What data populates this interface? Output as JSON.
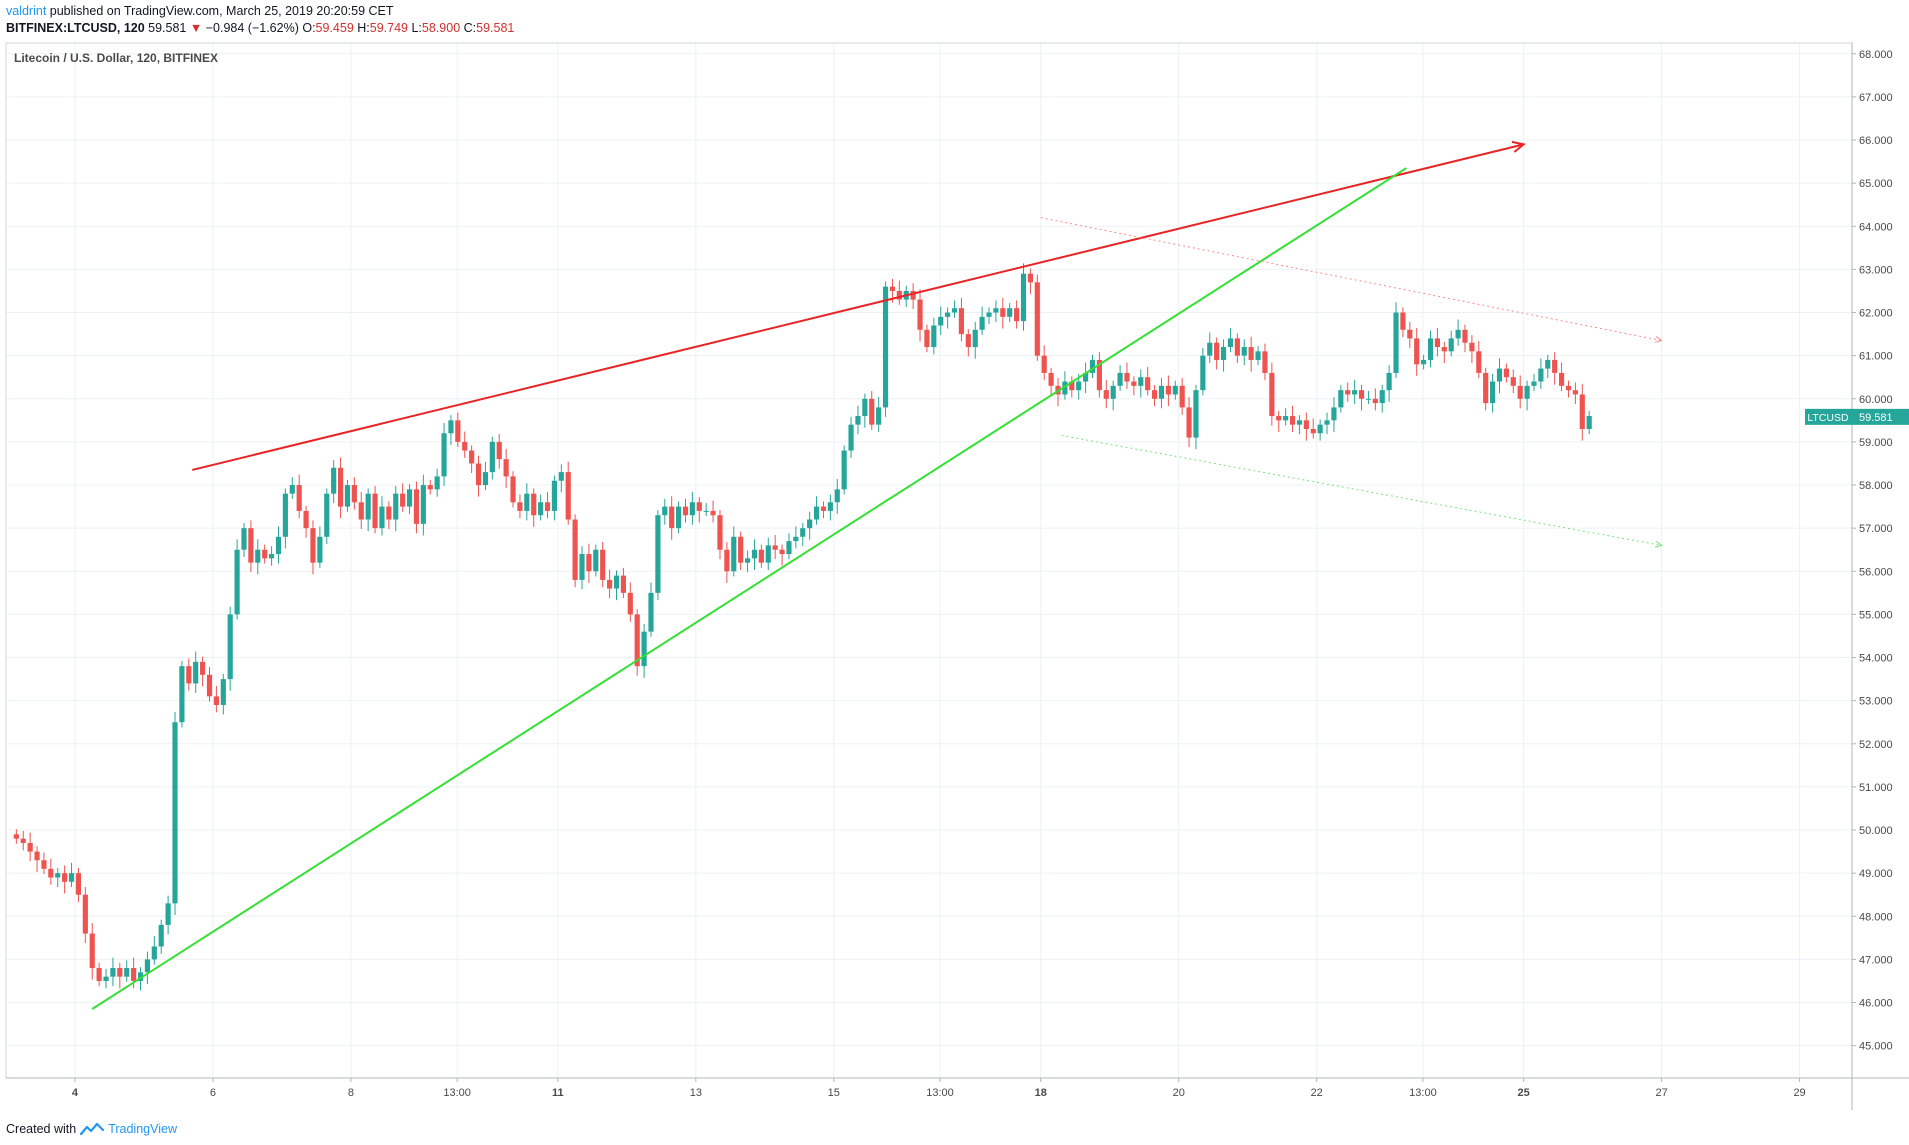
{
  "header": {
    "author": "valdrint",
    "published": " published on TradingView.com, March 25, 2019 20:20:59 CET",
    "symbol": "BITFINEX:LTCUSD, 120",
    "price": "59.581",
    "change_arrow": "▼",
    "change": "−0.984 (−1.62%)",
    "o_label": "O:",
    "o": "59.459",
    "h_label": "H:",
    "h": "59.749",
    "l_label": "L:",
    "l": "58.900",
    "c_label": "C:",
    "c": "59.581"
  },
  "footer": {
    "created_with": "Created with",
    "brand": "TradingView"
  },
  "colors": {
    "up": "#26a69a",
    "down": "#ef5350",
    "red_line": "#e82424",
    "green_line": "#33e033",
    "grid": "#edf1f5",
    "axis_text": "#4a4a4a",
    "price_tag": "#26a69a"
  },
  "chart_data": {
    "type": "candlestick",
    "title": "Litecoin / U.S. Dollar, 120, BITFINEX",
    "ylim": [
      44.25,
      68.25
    ],
    "y_ticks": [
      "68.000",
      "67.000",
      "66.000",
      "65.000",
      "64.000",
      "63.000",
      "62.000",
      "61.000",
      "60.000",
      "59.000",
      "58.000",
      "57.000",
      "56.000",
      "55.000",
      "54.000",
      "53.000",
      "52.000",
      "51.000",
      "50.000",
      "49.000",
      "48.000",
      "47.000",
      "46.000",
      "45.000"
    ],
    "x_ticks": [
      {
        "label": "4",
        "bold": true,
        "day": 4
      },
      {
        "label": "6",
        "bold": false,
        "day": 6
      },
      {
        "label": "8",
        "bold": false,
        "day": 8
      },
      {
        "label": "13:00",
        "bold": false,
        "day": 9.54
      },
      {
        "label": "11",
        "bold": true,
        "day": 11
      },
      {
        "label": "13",
        "bold": false,
        "day": 13
      },
      {
        "label": "15",
        "bold": false,
        "day": 15
      },
      {
        "label": "13:00",
        "bold": false,
        "day": 16.54
      },
      {
        "label": "18",
        "bold": true,
        "day": 18
      },
      {
        "label": "20",
        "bold": false,
        "day": 20
      },
      {
        "label": "22",
        "bold": false,
        "day": 22
      },
      {
        "label": "13:00",
        "bold": false,
        "day": 23.54
      },
      {
        "label": "25",
        "bold": true,
        "day": 25
      },
      {
        "label": "27",
        "bold": false,
        "day": 27
      },
      {
        "label": "29",
        "bold": false,
        "day": 29
      }
    ],
    "last_price_label": "LTCUSD",
    "last_price": "59.581",
    "last_price_value": 59.581,
    "closes": [
      [
        3.15,
        49.8
      ],
      [
        3.25,
        49.7
      ],
      [
        3.35,
        49.5
      ],
      [
        3.45,
        49.3
      ],
      [
        3.55,
        49.1
      ],
      [
        3.65,
        48.9
      ],
      [
        3.75,
        49.0
      ],
      [
        3.85,
        48.8
      ],
      [
        3.95,
        49.0
      ],
      [
        4.05,
        48.5
      ],
      [
        4.15,
        47.6
      ],
      [
        4.25,
        46.8
      ],
      [
        4.35,
        46.5
      ],
      [
        4.45,
        46.6
      ],
      [
        4.55,
        46.8
      ],
      [
        4.65,
        46.6
      ],
      [
        4.75,
        46.8
      ],
      [
        4.85,
        46.5
      ],
      [
        4.95,
        46.7
      ],
      [
        5.05,
        47.0
      ],
      [
        5.15,
        47.3
      ],
      [
        5.25,
        47.8
      ],
      [
        5.35,
        48.3
      ],
      [
        5.45,
        52.5
      ],
      [
        5.55,
        53.8
      ],
      [
        5.65,
        53.4
      ],
      [
        5.75,
        53.9
      ],
      [
        5.85,
        53.6
      ],
      [
        5.95,
        53.1
      ],
      [
        6.05,
        52.9
      ],
      [
        6.15,
        53.5
      ],
      [
        6.25,
        55.0
      ],
      [
        6.35,
        56.5
      ],
      [
        6.45,
        57.0
      ],
      [
        6.55,
        56.2
      ],
      [
        6.65,
        56.5
      ],
      [
        6.75,
        56.3
      ],
      [
        6.85,
        56.4
      ],
      [
        6.95,
        56.8
      ],
      [
        7.05,
        57.8
      ],
      [
        7.15,
        58.0
      ],
      [
        7.25,
        57.4
      ],
      [
        7.35,
        57.0
      ],
      [
        7.45,
        56.2
      ],
      [
        7.55,
        56.8
      ],
      [
        7.65,
        57.8
      ],
      [
        7.75,
        58.4
      ],
      [
        7.85,
        57.5
      ],
      [
        7.95,
        58.0
      ],
      [
        8.05,
        57.6
      ],
      [
        8.15,
        57.2
      ],
      [
        8.25,
        57.8
      ],
      [
        8.35,
        57.0
      ],
      [
        8.45,
        57.5
      ],
      [
        8.55,
        57.2
      ],
      [
        8.65,
        57.8
      ],
      [
        8.75,
        57.5
      ],
      [
        8.85,
        57.9
      ],
      [
        8.95,
        57.1
      ],
      [
        9.05,
        58.0
      ],
      [
        9.15,
        57.9
      ],
      [
        9.25,
        58.2
      ],
      [
        9.35,
        59.2
      ],
      [
        9.45,
        59.5
      ],
      [
        9.55,
        59.0
      ],
      [
        9.65,
        58.8
      ],
      [
        9.75,
        58.5
      ],
      [
        9.85,
        58.0
      ],
      [
        9.95,
        58.3
      ],
      [
        10.05,
        59.0
      ],
      [
        10.15,
        58.6
      ],
      [
        10.25,
        58.2
      ],
      [
        10.35,
        57.6
      ],
      [
        10.45,
        57.4
      ],
      [
        10.55,
        57.8
      ],
      [
        10.65,
        57.3
      ],
      [
        10.75,
        57.6
      ],
      [
        10.85,
        57.4
      ],
      [
        10.95,
        58.1
      ],
      [
        11.05,
        58.3
      ],
      [
        11.15,
        57.2
      ],
      [
        11.25,
        55.8
      ],
      [
        11.35,
        56.4
      ],
      [
        11.45,
        56.0
      ],
      [
        11.55,
        56.5
      ],
      [
        11.65,
        55.8
      ],
      [
        11.75,
        55.6
      ],
      [
        11.85,
        55.9
      ],
      [
        11.95,
        55.5
      ],
      [
        12.05,
        55.0
      ],
      [
        12.15,
        53.8
      ],
      [
        12.25,
        54.6
      ],
      [
        12.35,
        55.5
      ],
      [
        12.45,
        57.3
      ],
      [
        12.55,
        57.5
      ],
      [
        12.65,
        57.0
      ],
      [
        12.75,
        57.5
      ],
      [
        12.85,
        57.3
      ],
      [
        12.95,
        57.6
      ],
      [
        13.05,
        57.4
      ],
      [
        13.15,
        57.4
      ],
      [
        13.25,
        57.3
      ],
      [
        13.35,
        56.5
      ],
      [
        13.45,
        56.0
      ],
      [
        13.55,
        56.8
      ],
      [
        13.65,
        56.2
      ],
      [
        13.75,
        56.3
      ],
      [
        13.85,
        56.5
      ],
      [
        13.95,
        56.2
      ],
      [
        14.05,
        56.6
      ],
      [
        14.15,
        56.5
      ],
      [
        14.25,
        56.4
      ],
      [
        14.35,
        56.7
      ],
      [
        14.45,
        56.8
      ],
      [
        14.55,
        57.0
      ],
      [
        14.65,
        57.2
      ],
      [
        14.75,
        57.5
      ],
      [
        14.85,
        57.4
      ],
      [
        14.95,
        57.6
      ],
      [
        15.05,
        57.9
      ],
      [
        15.15,
        58.8
      ],
      [
        15.25,
        59.4
      ],
      [
        15.35,
        59.6
      ],
      [
        15.45,
        60.0
      ],
      [
        15.55,
        59.4
      ],
      [
        15.65,
        59.8
      ],
      [
        15.75,
        62.6
      ],
      [
        15.85,
        62.5
      ],
      [
        15.95,
        62.3
      ],
      [
        16.05,
        62.5
      ],
      [
        16.15,
        62.3
      ],
      [
        16.25,
        61.6
      ],
      [
        16.35,
        61.2
      ],
      [
        16.45,
        61.7
      ],
      [
        16.55,
        61.9
      ],
      [
        16.65,
        62.0
      ],
      [
        16.75,
        62.1
      ],
      [
        16.85,
        61.5
      ],
      [
        16.95,
        61.2
      ],
      [
        17.05,
        61.6
      ],
      [
        17.15,
        61.9
      ],
      [
        17.25,
        62.0
      ],
      [
        17.35,
        62.1
      ],
      [
        17.45,
        61.9
      ],
      [
        17.55,
        62.1
      ],
      [
        17.65,
        61.8
      ],
      [
        17.75,
        62.9
      ],
      [
        17.85,
        62.7
      ],
      [
        17.95,
        61.0
      ],
      [
        18.05,
        60.6
      ],
      [
        18.15,
        60.3
      ],
      [
        18.25,
        60.1
      ],
      [
        18.35,
        60.4
      ],
      [
        18.45,
        60.2
      ],
      [
        18.55,
        60.4
      ],
      [
        18.65,
        60.6
      ],
      [
        18.75,
        60.9
      ],
      [
        18.85,
        60.2
      ],
      [
        18.95,
        60.0
      ],
      [
        19.05,
        60.3
      ],
      [
        19.15,
        60.6
      ],
      [
        19.25,
        60.4
      ],
      [
        19.35,
        60.3
      ],
      [
        19.45,
        60.5
      ],
      [
        19.55,
        60.2
      ],
      [
        19.65,
        60.0
      ],
      [
        19.75,
        60.3
      ],
      [
        19.85,
        60.1
      ],
      [
        19.95,
        60.3
      ],
      [
        20.05,
        59.8
      ],
      [
        20.15,
        59.1
      ],
      [
        20.25,
        60.2
      ],
      [
        20.35,
        61.0
      ],
      [
        20.45,
        61.3
      ],
      [
        20.55,
        60.9
      ],
      [
        20.65,
        61.2
      ],
      [
        20.75,
        61.4
      ],
      [
        20.85,
        61.0
      ],
      [
        20.95,
        61.2
      ],
      [
        21.05,
        60.9
      ],
      [
        21.15,
        61.1
      ],
      [
        21.25,
        60.6
      ],
      [
        21.35,
        59.6
      ],
      [
        21.45,
        59.5
      ],
      [
        21.55,
        59.6
      ],
      [
        21.65,
        59.4
      ],
      [
        21.75,
        59.5
      ],
      [
        21.85,
        59.3
      ],
      [
        21.95,
        59.2
      ],
      [
        22.05,
        59.4
      ],
      [
        22.15,
        59.5
      ],
      [
        22.25,
        59.8
      ],
      [
        22.35,
        60.2
      ],
      [
        22.45,
        60.1
      ],
      [
        22.55,
        60.2
      ],
      [
        22.65,
        60.0
      ],
      [
        22.75,
        60.0
      ],
      [
        22.85,
        59.9
      ],
      [
        22.95,
        60.2
      ],
      [
        23.05,
        60.6
      ],
      [
        23.15,
        62.0
      ],
      [
        23.25,
        61.6
      ],
      [
        23.35,
        61.4
      ],
      [
        23.45,
        60.8
      ],
      [
        23.55,
        60.9
      ],
      [
        23.65,
        61.4
      ],
      [
        23.75,
        61.2
      ],
      [
        23.85,
        61.1
      ],
      [
        23.95,
        61.4
      ],
      [
        24.05,
        61.6
      ],
      [
        24.15,
        61.3
      ],
      [
        24.25,
        61.1
      ],
      [
        24.35,
        60.6
      ],
      [
        24.45,
        59.9
      ],
      [
        24.55,
        60.4
      ],
      [
        24.65,
        60.7
      ],
      [
        24.75,
        60.5
      ],
      [
        24.85,
        60.3
      ],
      [
        24.95,
        60.0
      ],
      [
        25.05,
        60.3
      ],
      [
        25.15,
        60.4
      ],
      [
        25.25,
        60.7
      ],
      [
        25.35,
        60.9
      ],
      [
        25.45,
        60.6
      ],
      [
        25.55,
        60.3
      ],
      [
        25.65,
        60.2
      ],
      [
        25.75,
        60.1
      ],
      [
        25.85,
        59.3
      ],
      [
        25.95,
        59.6
      ]
    ],
    "trend_lines": [
      {
        "name": "resistance",
        "color": "#e82424",
        "from": [
          5.7,
          58.35
        ],
        "to": [
          25.0,
          65.9
        ],
        "arrow": true,
        "dashed": false
      },
      {
        "name": "support",
        "color": "#33e033",
        "from": [
          4.25,
          45.85
        ],
        "to": [
          23.3,
          65.35
        ],
        "arrow": false,
        "dashed": false
      },
      {
        "name": "channel-top",
        "color": "#ff8a8a",
        "from": [
          18.0,
          64.2
        ],
        "to": [
          27.0,
          61.35
        ],
        "arrow": true,
        "dashed": true
      },
      {
        "name": "channel-bottom",
        "color": "#7ae27a",
        "from": [
          18.3,
          59.15
        ],
        "to": [
          27.0,
          56.6
        ],
        "arrow": true,
        "dashed": true
      }
    ]
  }
}
